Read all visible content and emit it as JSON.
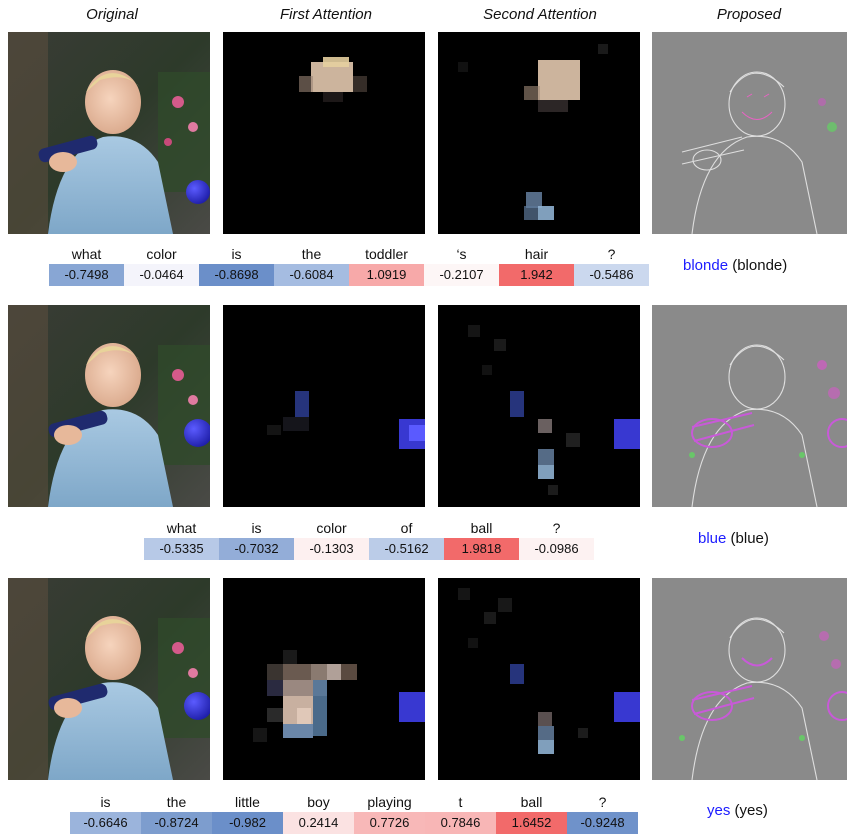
{
  "headers": {
    "original": "Original",
    "first_attention": "First Attention",
    "second_attention": "Second Attention",
    "proposed": "Proposed"
  },
  "colors": {
    "positive": "#f26a6a",
    "negative": "#6b8fc9",
    "answer": "#1c1cff"
  },
  "rows": [
    {
      "question": {
        "words": [
          "what",
          "color",
          "is",
          "the",
          "toddler",
          "‘s",
          "hair",
          "?"
        ],
        "scores": [
          "-0.7498",
          "-0.0464",
          "-0.8698",
          "-0.6084",
          "1.0919",
          "-0.2107",
          "1.942",
          "-0.5486"
        ]
      },
      "answer": {
        "predicted": "blonde",
        "ground_truth": "(blonde)"
      }
    },
    {
      "question": {
        "words": [
          "what",
          "is",
          "color",
          "of",
          "ball",
          "?"
        ],
        "scores": [
          "-0.5335",
          "-0.7032",
          "-0.1303",
          "-0.5162",
          "1.9818",
          "-0.0986"
        ]
      },
      "answer": {
        "predicted": "blue",
        "ground_truth": "(blue)"
      }
    },
    {
      "question": {
        "words": [
          "is",
          "the",
          "little",
          "boy",
          "playing",
          "t",
          "ball",
          "?"
        ],
        "scores": [
          "-0.6646",
          "-0.8724",
          "-0.982",
          "0.2414",
          "0.7726",
          "0.7846",
          "1.6452",
          "-0.9248"
        ]
      },
      "answer": {
        "predicted": "yes",
        "ground_truth": "(yes)"
      }
    }
  ]
}
